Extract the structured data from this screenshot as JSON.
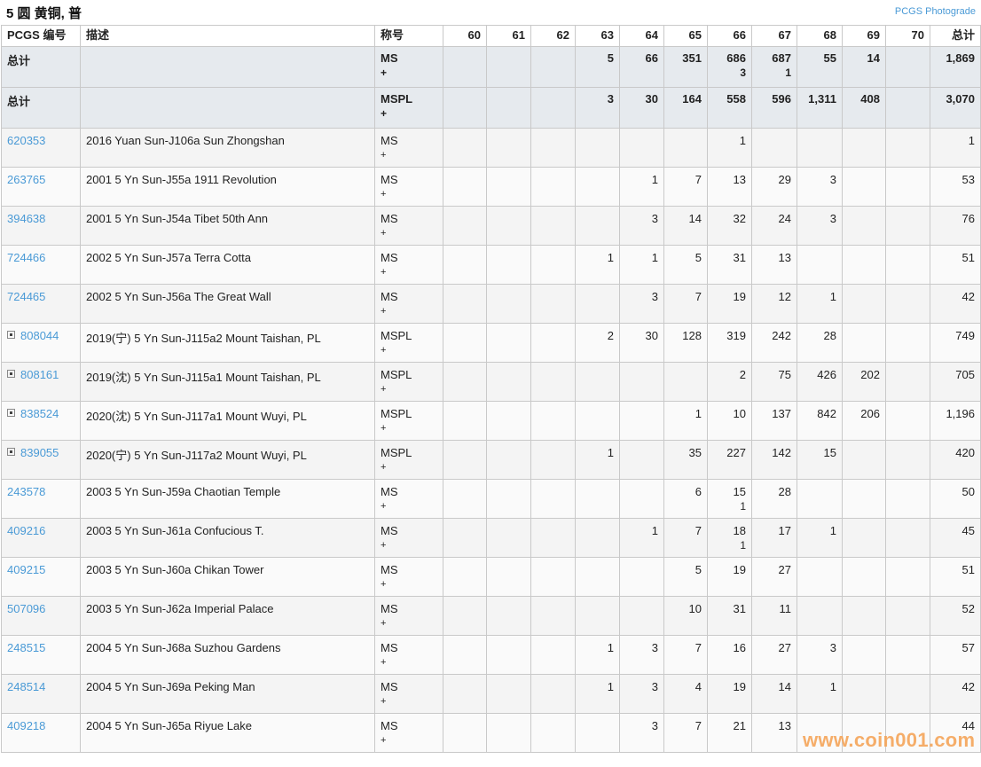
{
  "header": {
    "title": "5 圆 黄铜, 普",
    "photograde_link": "PCGS Photograde"
  },
  "columns": {
    "id": "PCGS 编号",
    "desc": "描述",
    "grade": "称号",
    "grades": [
      "60",
      "61",
      "62",
      "63",
      "64",
      "65",
      "66",
      "67",
      "68",
      "69",
      "70"
    ],
    "total": "总计"
  },
  "totals": [
    {
      "label": "总计",
      "grade": "MS",
      "grade_plus": "+",
      "counts": [
        "",
        "",
        "",
        "5",
        "66",
        "351",
        "686",
        "687",
        "55",
        "14",
        ""
      ],
      "plus": [
        "",
        "",
        "",
        "",
        "",
        "",
        "3",
        "1",
        "",
        "",
        ""
      ],
      "total": "1,869"
    },
    {
      "label": "总计",
      "grade": "MSPL",
      "grade_plus": "+",
      "counts": [
        "",
        "",
        "",
        "3",
        "30",
        "164",
        "558",
        "596",
        "1,311",
        "408",
        ""
      ],
      "plus": [
        "",
        "",
        "",
        "",
        "",
        "",
        "",
        "",
        "",
        "",
        ""
      ],
      "total": "3,070"
    }
  ],
  "rows": [
    {
      "id": "620353",
      "expandable": false,
      "desc": "2016 Yuan Sun-J106a Sun Zhongshan",
      "grade": "MS",
      "grade_plus": "+",
      "counts": [
        "",
        "",
        "",
        "",
        "",
        "",
        "1",
        "",
        "",
        "",
        ""
      ],
      "plus": [],
      "total": "1"
    },
    {
      "id": "263765",
      "expandable": false,
      "desc": "2001 5 Yn Sun-J55a 1911 Revolution",
      "grade": "MS",
      "grade_plus": "+",
      "counts": [
        "",
        "",
        "",
        "",
        "1",
        "7",
        "13",
        "29",
        "3",
        "",
        ""
      ],
      "plus": [],
      "total": "53"
    },
    {
      "id": "394638",
      "expandable": false,
      "desc": "2001 5 Yn Sun-J54a Tibet 50th Ann",
      "grade": "MS",
      "grade_plus": "+",
      "counts": [
        "",
        "",
        "",
        "",
        "3",
        "14",
        "32",
        "24",
        "3",
        "",
        ""
      ],
      "plus": [],
      "total": "76"
    },
    {
      "id": "724466",
      "expandable": false,
      "desc": "2002 5 Yn Sun-J57a Terra Cotta",
      "grade": "MS",
      "grade_plus": "+",
      "counts": [
        "",
        "",
        "",
        "1",
        "1",
        "5",
        "31",
        "13",
        "",
        "",
        ""
      ],
      "plus": [],
      "total": "51"
    },
    {
      "id": "724465",
      "expandable": false,
      "desc": "2002 5 Yn Sun-J56a The Great Wall",
      "grade": "MS",
      "grade_plus": "+",
      "counts": [
        "",
        "",
        "",
        "",
        "3",
        "7",
        "19",
        "12",
        "1",
        "",
        ""
      ],
      "plus": [],
      "total": "42"
    },
    {
      "id": "808044",
      "expandable": true,
      "desc": "2019(宁) 5 Yn Sun-J115a2 Mount Taishan, PL",
      "grade": "MSPL",
      "grade_plus": "+",
      "counts": [
        "",
        "",
        "",
        "2",
        "30",
        "128",
        "319",
        "242",
        "28",
        "",
        ""
      ],
      "plus": [],
      "total": "749"
    },
    {
      "id": "808161",
      "expandable": true,
      "desc": "2019(沈) 5 Yn Sun-J115a1 Mount Taishan, PL",
      "grade": "MSPL",
      "grade_plus": "+",
      "counts": [
        "",
        "",
        "",
        "",
        "",
        "",
        "2",
        "75",
        "426",
        "202",
        ""
      ],
      "plus": [],
      "total": "705"
    },
    {
      "id": "838524",
      "expandable": true,
      "desc": "2020(沈) 5 Yn Sun-J117a1 Mount Wuyi, PL",
      "grade": "MSPL",
      "grade_plus": "+",
      "counts": [
        "",
        "",
        "",
        "",
        "",
        "1",
        "10",
        "137",
        "842",
        "206",
        ""
      ],
      "plus": [],
      "total": "1,196"
    },
    {
      "id": "839055",
      "expandable": true,
      "desc": "2020(宁) 5 Yn Sun-J117a2 Mount Wuyi, PL",
      "grade": "MSPL",
      "grade_plus": "+",
      "counts": [
        "",
        "",
        "",
        "1",
        "",
        "35",
        "227",
        "142",
        "15",
        "",
        ""
      ],
      "plus": [],
      "total": "420"
    },
    {
      "id": "243578",
      "expandable": false,
      "desc": "2003 5 Yn Sun-J59a Chaotian Temple",
      "grade": "MS",
      "grade_plus": "+",
      "counts": [
        "",
        "",
        "",
        "",
        "",
        "6",
        "15",
        "28",
        "",
        "",
        ""
      ],
      "plus": [
        "",
        "",
        "",
        "",
        "",
        "",
        "1",
        "",
        "",
        "",
        ""
      ],
      "total": "50"
    },
    {
      "id": "409216",
      "expandable": false,
      "desc": "2003 5 Yn Sun-J61a Confucious T.",
      "grade": "MS",
      "grade_plus": "+",
      "counts": [
        "",
        "",
        "",
        "",
        "1",
        "7",
        "18",
        "17",
        "1",
        "",
        ""
      ],
      "plus": [
        "",
        "",
        "",
        "",
        "",
        "",
        "1",
        "",
        "",
        "",
        ""
      ],
      "total": "45"
    },
    {
      "id": "409215",
      "expandable": false,
      "desc": "2003 5 Yn Sun-J60a Chikan Tower",
      "grade": "MS",
      "grade_plus": "+",
      "counts": [
        "",
        "",
        "",
        "",
        "",
        "5",
        "19",
        "27",
        "",
        "",
        ""
      ],
      "plus": [],
      "total": "51"
    },
    {
      "id": "507096",
      "expandable": false,
      "desc": "2003 5 Yn Sun-J62a Imperial Palace",
      "grade": "MS",
      "grade_plus": "+",
      "counts": [
        "",
        "",
        "",
        "",
        "",
        "10",
        "31",
        "11",
        "",
        "",
        ""
      ],
      "plus": [],
      "total": "52"
    },
    {
      "id": "248515",
      "expandable": false,
      "desc": "2004 5 Yn Sun-J68a Suzhou Gardens",
      "grade": "MS",
      "grade_plus": "+",
      "counts": [
        "",
        "",
        "",
        "1",
        "3",
        "7",
        "16",
        "27",
        "3",
        "",
        ""
      ],
      "plus": [],
      "total": "57"
    },
    {
      "id": "248514",
      "expandable": false,
      "desc": "2004 5 Yn Sun-J69a Peking Man",
      "grade": "MS",
      "grade_plus": "+",
      "counts": [
        "",
        "",
        "",
        "1",
        "3",
        "4",
        "19",
        "14",
        "1",
        "",
        ""
      ],
      "plus": [],
      "total": "42"
    },
    {
      "id": "409218",
      "expandable": false,
      "desc": "2004 5 Yn Sun-J65a Riyue Lake",
      "grade": "MS",
      "grade_plus": "+",
      "counts": [
        "",
        "",
        "",
        "",
        "3",
        "7",
        "21",
        "13",
        "",
        "",
        ""
      ],
      "plus": [],
      "total": "44"
    }
  ],
  "watermark": "www.coin001.com",
  "colors": {
    "link": "#4a9ad6",
    "total_row_bg": "#e6eaee",
    "watermark": "#f5a55a"
  }
}
